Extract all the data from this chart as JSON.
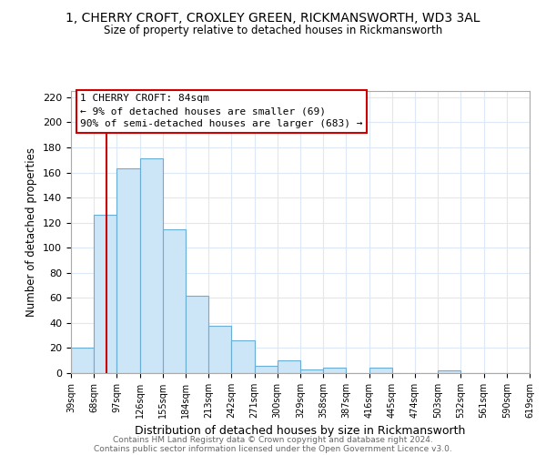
{
  "title": "1, CHERRY CROFT, CROXLEY GREEN, RICKMANSWORTH, WD3 3AL",
  "subtitle": "Size of property relative to detached houses in Rickmansworth",
  "xlabel": "Distribution of detached houses by size in Rickmansworth",
  "ylabel": "Number of detached properties",
  "bin_edges": [
    39,
    68,
    97,
    126,
    155,
    184,
    213,
    242,
    271,
    300,
    329,
    358,
    387,
    416,
    445,
    474,
    503,
    532,
    561,
    590,
    619
  ],
  "bin_heights": [
    20,
    126,
    163,
    171,
    115,
    62,
    38,
    26,
    6,
    10,
    3,
    4,
    0,
    4,
    0,
    0,
    2,
    0,
    0,
    0
  ],
  "bar_color": "#cce5f7",
  "bar_edge_color": "#6aaed6",
  "vline_x": 84,
  "vline_color": "#cc0000",
  "annotation_title": "1 CHERRY CROFT: 84sqm",
  "annotation_line1": "← 9% of detached houses are smaller (69)",
  "annotation_line2": "90% of semi-detached houses are larger (683) →",
  "annotation_box_edge": "#cc0000",
  "ylim": [
    0,
    225
  ],
  "yticks": [
    0,
    20,
    40,
    60,
    80,
    100,
    120,
    140,
    160,
    180,
    200,
    220
  ],
  "plot_bg": "#ffffff",
  "fig_bg": "#ffffff",
  "footer1": "Contains HM Land Registry data © Crown copyright and database right 2024.",
  "footer2": "Contains public sector information licensed under the Open Government Licence v3.0."
}
